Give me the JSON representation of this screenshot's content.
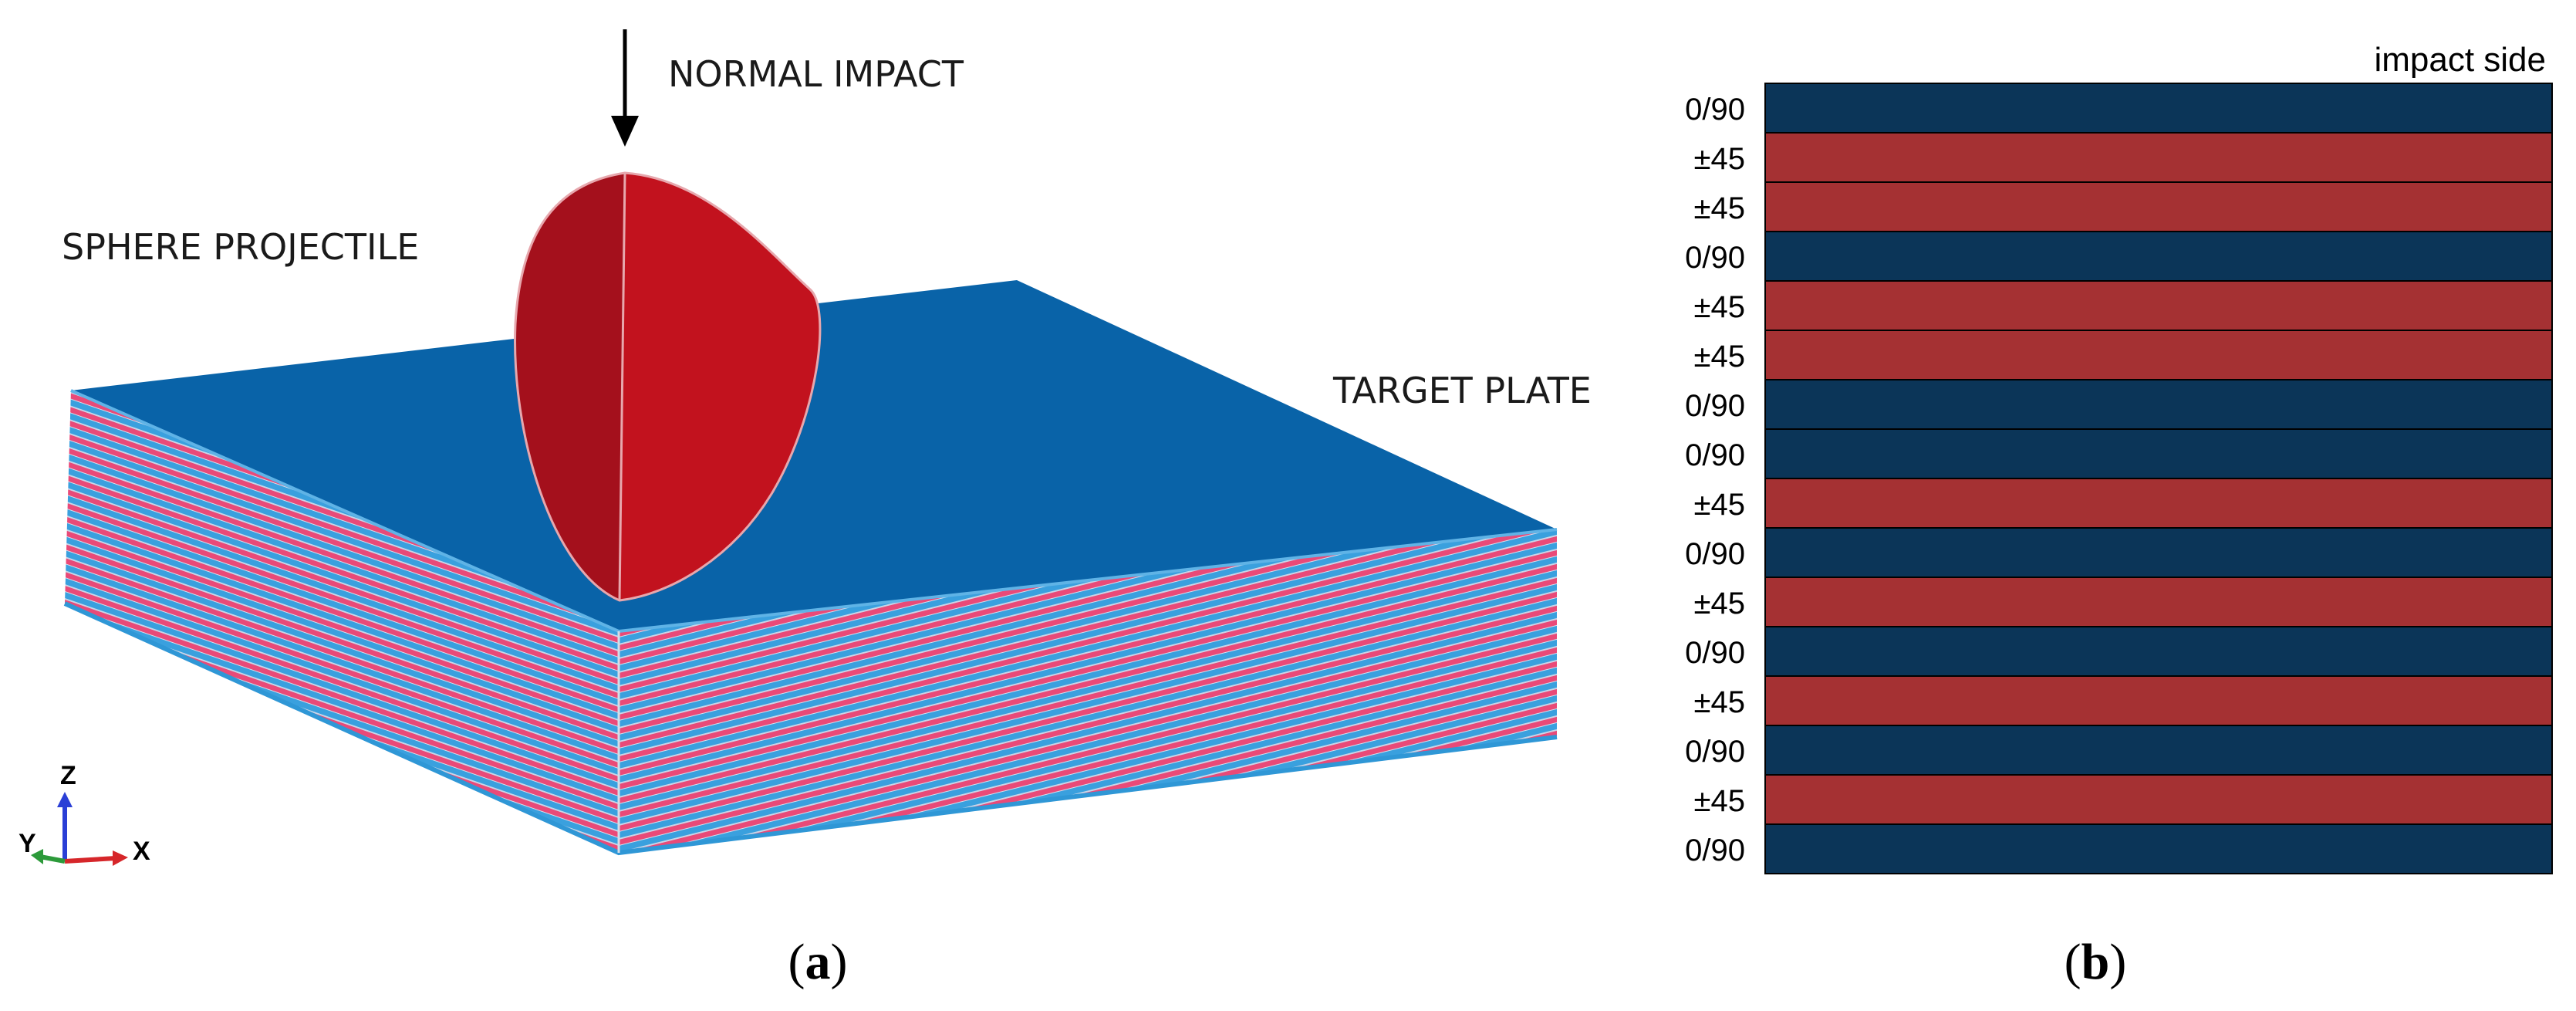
{
  "panel_a": {
    "labels": {
      "normal_impact": "NORMAL IMPACT",
      "sphere_projectile": "SPHERE PROJECTILE",
      "target_plate": "TARGET PLATE"
    },
    "axes": {
      "z": "Z",
      "y": "Y",
      "x": "X"
    },
    "caption": {
      "open": "(",
      "letter": "a",
      "close": ")"
    },
    "colors": {
      "plate_top": "#0963a8",
      "plate_left": "#3d8fd6",
      "layer_blue": "#3aa0de",
      "layer_red": "#e94a78",
      "projectile_dark": "#a4101c",
      "projectile_light": "#c2121e"
    }
  },
  "panel_b": {
    "header": "impact side",
    "layers": [
      "0/90",
      "±45",
      "±45",
      "0/90",
      "±45",
      "±45",
      "0/90",
      "0/90",
      "±45",
      "0/90",
      "±45",
      "0/90",
      "±45",
      "0/90",
      "±45",
      "0/90"
    ],
    "colors": {
      "0/90": "#0b3558",
      "±45": "#a53133"
    },
    "caption": {
      "open": "(",
      "letter": "b",
      "close": ")"
    }
  }
}
